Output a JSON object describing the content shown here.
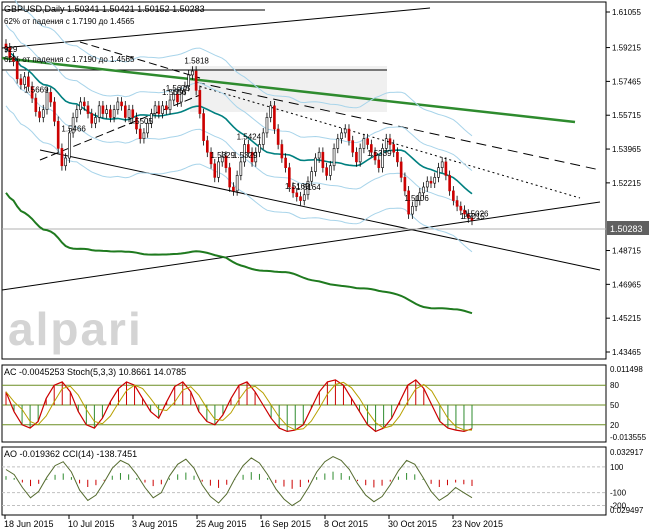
{
  "header": {
    "symbol_line": "GBPUSD,Daily 1.50341 1.50421 1.50152 1.50283",
    "fib_label_1": "62% от падения с 1.7190 до 1.4565",
    "fib_label_2": "62% от падения с 1.7190 до 1.4565",
    "fib_left_value": "929"
  },
  "watermark": "alpari",
  "main_panel": {
    "price_axis": [
      "1.61055",
      "1.59215",
      "1.57465",
      "1.55715",
      "1.53965",
      "1.52215",
      "1.48715",
      "1.46965",
      "1.45215",
      "1.43465"
    ],
    "current_price": "1.50283",
    "annotations": [
      "1.5818",
      "1.5675",
      "1.5669",
      "1.5466",
      "1.5424",
      "1.5329",
      "1.5169",
      "1.5164",
      "1.5656",
      "1.5329",
      "1.5106",
      "1.5505",
      "1.5339",
      "1.5026",
      "1.5015"
    ]
  },
  "stoch_panel": {
    "label": "AC -0.0045253 Stoch(5,3,3) 10.8661 14.0785",
    "axis": [
      "0.011498",
      "80",
      "50",
      "20",
      "-0.013555"
    ]
  },
  "cci_panel": {
    "label": "AO -0.019362 CCI(14) -138.7451",
    "axis": [
      "0.032917",
      "100",
      "-100",
      "-200",
      "0.029497"
    ]
  },
  "x_axis": [
    "18 Jun 2015",
    "10 Jul 2015",
    "3 Aug 2015",
    "25 Aug 2015",
    "16 Sep 2015",
    "8 Oct 2015",
    "30 Oct 2015",
    "23 Nov 2015"
  ],
  "chart_data": {
    "type": "candlestick",
    "title": "GBPUSD,Daily",
    "ohlc_last": {
      "open": 1.50341,
      "high": 1.50421,
      "low": 1.50152,
      "close": 1.50283
    },
    "y_range": [
      1.43465,
      1.61055
    ],
    "close_series": [
      1.592,
      1.587,
      1.585,
      1.576,
      1.573,
      1.577,
      1.572,
      1.566,
      1.559,
      1.556,
      1.56,
      1.569,
      1.564,
      1.554,
      1.54,
      1.531,
      1.535,
      1.548,
      1.556,
      1.56,
      1.564,
      1.562,
      1.558,
      1.553,
      1.556,
      1.562,
      1.558,
      1.56,
      1.556,
      1.56,
      1.564,
      1.562,
      1.556,
      1.56,
      1.556,
      1.55,
      1.545,
      1.548,
      1.553,
      1.558,
      1.562,
      1.558,
      1.562,
      1.56,
      1.565,
      1.568,
      1.564,
      1.57,
      1.572,
      1.578,
      1.58,
      1.57,
      1.558,
      1.544,
      1.538,
      1.532,
      1.525,
      1.533,
      1.536,
      1.53,
      1.52,
      1.518,
      1.526,
      1.533,
      1.542,
      1.538,
      1.533,
      1.538,
      1.542,
      1.548,
      1.556,
      1.562,
      1.55,
      1.542,
      1.535,
      1.53,
      1.52,
      1.517,
      1.515,
      1.513,
      1.516,
      1.523,
      1.528,
      1.535,
      1.538,
      1.53,
      1.526,
      1.531,
      1.54,
      1.545,
      1.548,
      1.55,
      1.544,
      1.538,
      1.533,
      1.54,
      1.545,
      1.542,
      1.538,
      1.534,
      1.53,
      1.54,
      1.545,
      1.542,
      1.538,
      1.533,
      1.525,
      1.518,
      1.506,
      1.51,
      1.513,
      1.517,
      1.52,
      1.523,
      1.522,
      1.525,
      1.53,
      1.533,
      1.526,
      1.518,
      1.513,
      1.51,
      1.508,
      1.506,
      1.504,
      1.5028
    ],
    "stoch_range": [
      0,
      100
    ],
    "stoch_levels": [
      80,
      50,
      20
    ],
    "stoch_k": [
      70,
      40,
      20,
      15,
      25,
      60,
      80,
      85,
      70,
      40,
      20,
      15,
      30,
      55,
      75,
      85,
      80,
      60,
      40,
      30,
      55,
      78,
      85,
      70,
      40,
      25,
      20,
      35,
      60,
      80,
      85,
      70,
      50,
      30,
      15,
      10,
      12,
      20,
      45,
      70,
      85,
      88,
      80,
      60,
      40,
      20,
      10,
      15,
      30,
      55,
      80,
      88,
      75,
      50,
      25,
      15,
      12,
      10,
      14
    ],
    "cci_range": [
      -250,
      200
    ],
    "cci_levels": [
      100,
      -100,
      -200
    ],
    "cci": [
      80,
      40,
      -60,
      -140,
      -90,
      20,
      110,
      140,
      60,
      -80,
      -160,
      -120,
      -20,
      90,
      150,
      120,
      40,
      -60,
      -140,
      -100,
      30,
      120,
      160,
      90,
      -40,
      -130,
      -180,
      -110,
      10,
      110,
      170,
      130,
      40,
      -70,
      -150,
      -200,
      -160,
      -60,
      60,
      140,
      180,
      150,
      80,
      -30,
      -120,
      -170,
      -130,
      -40,
      70,
      150,
      120,
      20,
      -90,
      -160,
      -120,
      -60,
      -100,
      -139
    ]
  }
}
